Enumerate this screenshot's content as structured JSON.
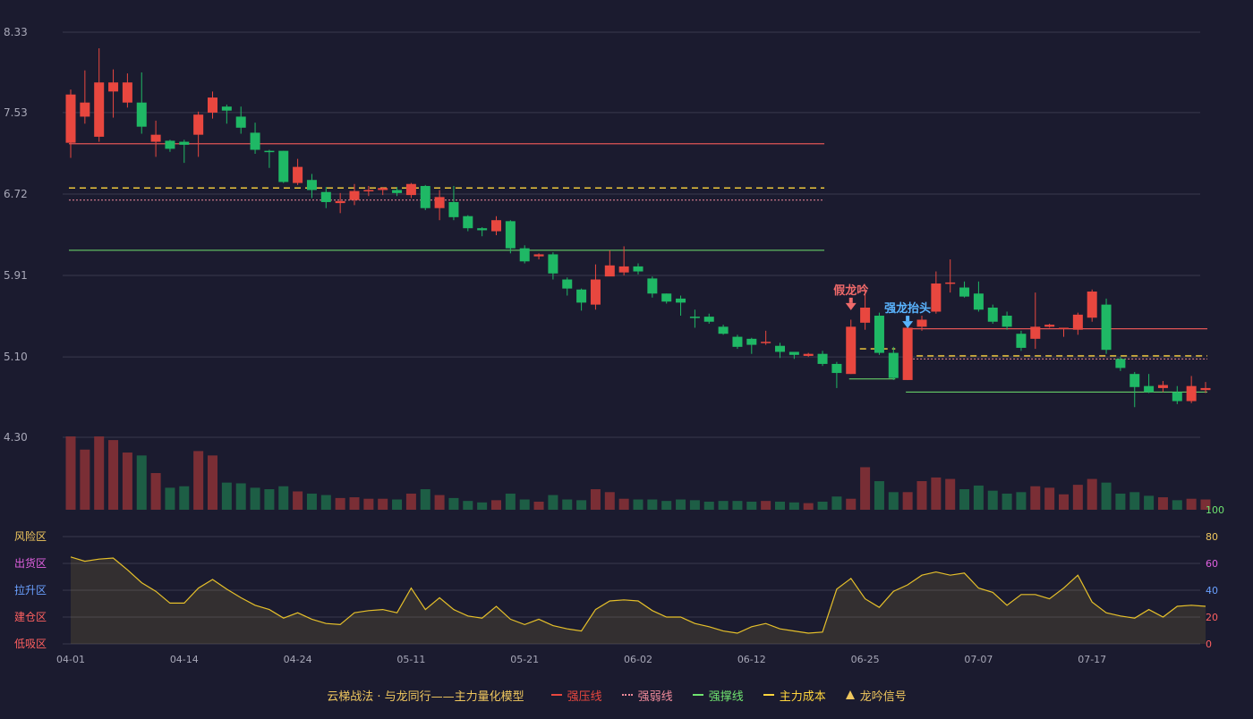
{
  "colors": {
    "up": "#e8473f",
    "down": "#1fb865",
    "volume_up": "#7a2e35",
    "volume_down": "#1d5e45",
    "pressure": "#e05555",
    "weak": "#f08a9a",
    "support": "#6fe36f",
    "cost": "#ffd53d",
    "oscillator": "#e6c02a",
    "grid": "#3a3a4e",
    "axis_text": "#a8a8b8"
  },
  "legend": {
    "title": "云梯战法 · 与龙同行——主力量化模型",
    "items": [
      {
        "label": "强压线",
        "color": "#e8473f",
        "style": "solid"
      },
      {
        "label": "强弱线",
        "color": "#f08a9a",
        "style": "dot"
      },
      {
        "label": "强撑线",
        "color": "#6fe36f",
        "style": "solid"
      },
      {
        "label": "主力成本",
        "color": "#ffd53d",
        "style": "dash"
      },
      {
        "label": "龙吟信号",
        "color": "#f0c75e",
        "style": "triangle"
      }
    ]
  },
  "chart_data": [
    {
      "type": "candlestick",
      "y_ticks": [
        "8.33",
        "7.53",
        "6.72",
        "5.91",
        "5.10",
        "4.30"
      ],
      "ylim": [
        4.3,
        8.33
      ],
      "x_ticks": [
        {
          "index": 0,
          "label": "04-01"
        },
        {
          "index": 8,
          "label": "04-14"
        },
        {
          "index": 16,
          "label": "04-24"
        },
        {
          "index": 24,
          "label": "05-11"
        },
        {
          "index": 32,
          "label": "05-21"
        },
        {
          "index": 40,
          "label": "06-02"
        },
        {
          "index": 48,
          "label": "06-12"
        },
        {
          "index": 56,
          "label": "06-25"
        },
        {
          "index": 64,
          "label": "07-07"
        },
        {
          "index": 72,
          "label": "07-17"
        }
      ],
      "candles": [
        [
          7.23,
          7.71,
          7.08,
          7.76
        ],
        [
          7.49,
          7.63,
          7.42,
          7.95
        ],
        [
          7.29,
          7.83,
          7.24,
          8.17
        ],
        [
          7.74,
          7.83,
          7.48,
          7.96
        ],
        [
          7.63,
          7.83,
          7.58,
          7.92
        ],
        [
          7.63,
          7.39,
          7.32,
          7.93
        ],
        [
          7.24,
          7.31,
          7.09,
          7.45
        ],
        [
          7.25,
          7.17,
          7.14,
          7.26
        ],
        [
          7.24,
          7.21,
          7.03,
          7.26
        ],
        [
          7.31,
          7.51,
          7.09,
          7.54
        ],
        [
          7.53,
          7.68,
          7.47,
          7.74
        ],
        [
          7.59,
          7.55,
          7.42,
          7.61
        ],
        [
          7.49,
          7.38,
          7.32,
          7.59
        ],
        [
          7.33,
          7.16,
          7.12,
          7.43
        ],
        [
          7.15,
          7.14,
          6.98,
          7.16
        ],
        [
          7.15,
          6.84,
          6.83,
          7.15
        ],
        [
          6.83,
          6.99,
          6.81,
          7.07
        ],
        [
          6.86,
          6.76,
          6.68,
          6.92
        ],
        [
          6.74,
          6.64,
          6.58,
          6.79
        ],
        [
          6.63,
          6.65,
          6.53,
          6.73
        ],
        [
          6.66,
          6.75,
          6.61,
          6.82
        ],
        [
          6.75,
          6.76,
          6.7,
          6.8
        ],
        [
          6.76,
          6.78,
          6.71,
          6.79
        ],
        [
          6.76,
          6.73,
          6.7,
          6.79
        ],
        [
          6.71,
          6.82,
          6.68,
          6.83
        ],
        [
          6.8,
          6.58,
          6.56,
          6.81
        ],
        [
          6.58,
          6.69,
          6.46,
          6.76
        ],
        [
          6.64,
          6.49,
          6.46,
          6.8
        ],
        [
          6.5,
          6.38,
          6.35,
          6.51
        ],
        [
          6.38,
          6.36,
          6.3,
          6.39
        ],
        [
          6.35,
          6.46,
          6.31,
          6.5
        ],
        [
          6.45,
          6.18,
          6.13,
          6.46
        ],
        [
          6.18,
          6.05,
          6.03,
          6.21
        ],
        [
          6.1,
          6.12,
          6.07,
          6.13
        ],
        [
          6.12,
          5.93,
          5.87,
          6.14
        ],
        [
          5.87,
          5.78,
          5.71,
          5.89
        ],
        [
          5.77,
          5.64,
          5.56,
          5.78
        ],
        [
          5.62,
          5.87,
          5.57,
          6.02
        ],
        [
          5.9,
          6.01,
          5.91,
          6.16
        ],
        [
          5.94,
          6.0,
          5.91,
          6.2
        ],
        [
          6.0,
          5.95,
          5.92,
          6.03
        ],
        [
          5.88,
          5.73,
          5.69,
          5.9
        ],
        [
          5.73,
          5.65,
          5.63,
          5.73
        ],
        [
          5.68,
          5.64,
          5.51,
          5.71
        ],
        [
          5.5,
          5.49,
          5.39,
          5.57
        ],
        [
          5.5,
          5.45,
          5.43,
          5.53
        ],
        [
          5.4,
          5.33,
          5.32,
          5.42
        ],
        [
          5.3,
          5.2,
          5.18,
          5.32
        ],
        [
          5.28,
          5.22,
          5.13,
          5.29
        ],
        [
          5.24,
          5.25,
          5.22,
          5.36
        ],
        [
          5.21,
          5.15,
          5.09,
          5.24
        ],
        [
          5.15,
          5.12,
          5.08,
          5.14
        ],
        [
          5.11,
          5.13,
          5.1,
          5.14
        ],
        [
          5.13,
          5.03,
          5.01,
          5.16
        ],
        [
          5.03,
          4.94,
          4.79,
          5.05
        ],
        [
          4.93,
          5.4,
          4.93,
          5.47
        ],
        [
          5.44,
          5.59,
          5.37,
          5.77
        ],
        [
          5.51,
          5.14,
          5.12,
          5.54
        ],
        [
          5.14,
          4.89,
          4.87,
          5.2
        ],
        [
          4.87,
          5.39,
          4.87,
          5.41
        ],
        [
          5.4,
          5.47,
          5.36,
          5.51
        ],
        [
          5.55,
          5.83,
          5.53,
          5.95
        ],
        [
          5.84,
          5.84,
          5.74,
          6.07
        ],
        [
          5.79,
          5.7,
          5.69,
          5.85
        ],
        [
          5.73,
          5.57,
          5.55,
          5.85
        ],
        [
          5.59,
          5.45,
          5.43,
          5.62
        ],
        [
          5.51,
          5.4,
          5.37,
          5.55
        ],
        [
          5.33,
          5.19,
          5.16,
          5.36
        ],
        [
          5.28,
          5.4,
          5.18,
          5.74
        ],
        [
          5.4,
          5.42,
          5.39,
          5.43
        ],
        [
          5.38,
          5.39,
          5.3,
          5.39
        ],
        [
          5.37,
          5.52,
          5.32,
          5.54
        ],
        [
          5.49,
          5.75,
          5.45,
          5.77
        ],
        [
          5.62,
          5.17,
          5.13,
          5.68
        ],
        [
          5.08,
          4.99,
          4.96,
          5.1
        ],
        [
          4.93,
          4.8,
          4.6,
          4.95
        ],
        [
          4.81,
          4.75,
          4.74,
          4.93
        ],
        [
          4.79,
          4.82,
          4.75,
          4.86
        ],
        [
          4.75,
          4.66,
          4.63,
          4.81
        ],
        [
          4.66,
          4.81,
          4.64,
          4.91
        ],
        [
          4.77,
          4.79,
          4.74,
          4.85
        ]
      ],
      "lines": [
        {
          "name": "强压线",
          "segments": [
            [
              0,
              53,
              7.22
            ],
            [
              59,
              80,
              5.38
            ]
          ]
        },
        {
          "name": "强弱线",
          "segments": [
            [
              0,
              53,
              6.66
            ],
            [
              59,
              80,
              5.08
            ]
          ]
        },
        {
          "name": "强撑线",
          "segments": [
            [
              0,
              53,
              6.16
            ],
            [
              55,
              58,
              4.88
            ],
            [
              59,
              80,
              4.75
            ]
          ]
        },
        {
          "name": "主力成本",
          "segments": [
            [
              0,
              53,
              6.78
            ],
            [
              55,
              58,
              5.18
            ],
            [
              59,
              80,
              5.11
            ]
          ]
        }
      ],
      "signals": [
        {
          "index": 55,
          "label": "假龙吟",
          "color": "#f06a6a",
          "price": 5.6
        },
        {
          "index": 59,
          "label": "强龙抬头",
          "color": "#5ab4ff",
          "price": 5.42
        }
      ]
    },
    {
      "type": "bar",
      "volumes": [
        100,
        82,
        100,
        95,
        78,
        74,
        50,
        30,
        32,
        80,
        74,
        37,
        36,
        30,
        28,
        32,
        25,
        22,
        20,
        16,
        17,
        15,
        15,
        14,
        22,
        28,
        20,
        16,
        12,
        10,
        13,
        22,
        14,
        11,
        20,
        14,
        13,
        28,
        24,
        15,
        14,
        14,
        12,
        14,
        13,
        11,
        12,
        12,
        11,
        12,
        11,
        10,
        9,
        11,
        18,
        15,
        58,
        39,
        24,
        24,
        39,
        44,
        42,
        28,
        33,
        26,
        22,
        24,
        32,
        30,
        21,
        34,
        42,
        37,
        22,
        24,
        19,
        17,
        13,
        15,
        14
      ]
    },
    {
      "type": "line",
      "zones": [
        "风险区",
        "出货区",
        "拉升区",
        "建仓区",
        "低吸区"
      ],
      "zone_colors": [
        "#f0c75e",
        "#e060e0",
        "#6aa0ff",
        "#ff6060",
        "#ff6060"
      ],
      "y_ticks": [
        "100",
        "80",
        "60",
        "40",
        "20",
        "0"
      ],
      "y_tick_colors": [
        "#6fe36f",
        "#f0c75e",
        "#e060e0",
        "#6aa0ff",
        "#ff6060",
        "#ff6060"
      ],
      "ylim": [
        0,
        100
      ],
      "values": [
        81,
        77,
        79,
        80,
        69,
        57,
        49,
        38,
        38,
        52,
        60,
        51,
        43,
        36,
        32,
        24,
        29,
        23,
        19,
        18,
        29,
        31,
        32,
        29,
        52,
        32,
        43,
        32,
        26,
        24,
        35,
        23,
        18,
        23,
        17,
        14,
        12,
        32,
        40,
        41,
        40,
        31,
        25,
        25,
        19,
        16,
        12,
        10,
        16,
        19,
        14,
        12,
        10,
        11,
        51,
        61,
        42,
        34,
        49,
        55,
        64,
        67,
        64,
        66,
        52,
        48,
        36,
        46,
        46,
        42,
        52,
        64,
        39,
        29,
        26,
        24,
        32,
        25,
        35,
        36,
        35
      ]
    }
  ]
}
